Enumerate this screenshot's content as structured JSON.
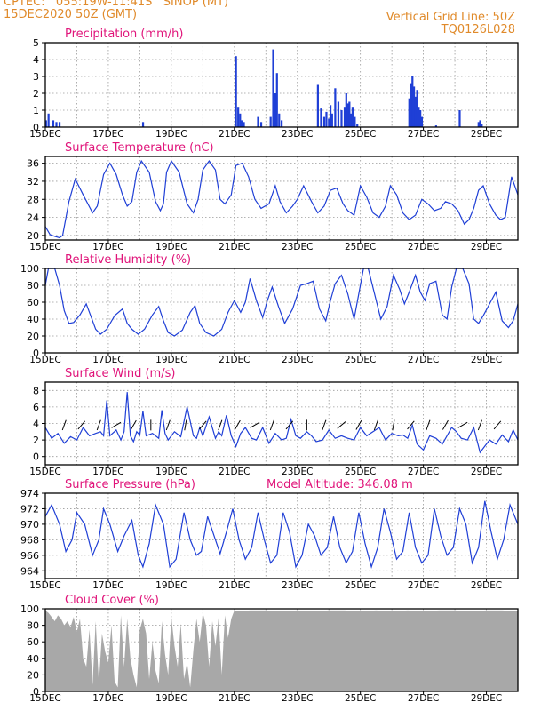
{
  "header": {
    "line1": "CPTEC:   055:19W-11:41S   SINOP (MT)",
    "line2": "15DEC2020 50Z (GMT)",
    "right1": "Vertical Grid Line: 50Z",
    "right2": "TQ0126L028"
  },
  "colors": {
    "header": "#e08a2a",
    "panel_title": "#e0147a",
    "line": "#1f3fd6",
    "bar": "#1f3fd6",
    "cloud": "#a8a8a8",
    "wind_arrow": "#000000"
  },
  "x_ticks": [
    "15DEC",
    "17DEC",
    "19DEC",
    "21DEC",
    "23DEC",
    "25DEC",
    "27DEC",
    "29DEC"
  ],
  "chart_data": [
    {
      "type": "bar",
      "title": "Precipitation (mm/h)",
      "x_range_days": [
        0,
        15
      ],
      "ylim": [
        0,
        5
      ],
      "yticks": [
        0,
        1,
        2,
        3,
        4,
        5
      ],
      "x": [
        0.02,
        0.1,
        0.25,
        0.35,
        0.45,
        3.1,
        6.05,
        6.12,
        6.18,
        6.23,
        6.3,
        6.75,
        6.85,
        7.15,
        7.23,
        7.3,
        7.35,
        7.42,
        7.5,
        8.65,
        8.75,
        8.85,
        8.92,
        9.0,
        9.05,
        9.1,
        9.2,
        9.3,
        9.4,
        9.5,
        9.55,
        9.6,
        9.65,
        9.7,
        9.75,
        9.82,
        9.9,
        11.55,
        11.6,
        11.65,
        11.7,
        11.75,
        11.8,
        11.85,
        11.9,
        11.95,
        12.4,
        13.15,
        13.75,
        13.8,
        13.85
      ],
      "values": [
        0.4,
        0.8,
        0.4,
        0.3,
        0.3,
        0.3,
        4.2,
        1.2,
        0.8,
        0.4,
        0.3,
        0.6,
        0.3,
        0.6,
        4.6,
        2.0,
        3.2,
        0.8,
        0.4,
        2.5,
        1.1,
        0.6,
        0.9,
        0.5,
        1.3,
        0.8,
        2.3,
        1.5,
        1.0,
        1.2,
        2.0,
        1.4,
        1.5,
        0.8,
        1.2,
        0.6,
        0.2,
        1.7,
        2.6,
        3.0,
        2.4,
        1.8,
        2.2,
        1.2,
        1.0,
        0.6,
        0.1,
        1.0,
        0.3,
        0.4,
        0.2
      ]
    },
    {
      "type": "line",
      "title": "Surface Temperature (nC)",
      "x_range_days": [
        0,
        15
      ],
      "ylim": [
        19,
        37.5
      ],
      "yticks": [
        20,
        24,
        28,
        32,
        36
      ],
      "x": [
        0,
        0.15,
        0.3,
        0.45,
        0.55,
        0.75,
        0.95,
        1.2,
        1.5,
        1.65,
        1.85,
        2.05,
        2.25,
        2.45,
        2.6,
        2.75,
        2.9,
        3.05,
        3.3,
        3.5,
        3.65,
        3.75,
        3.85,
        4.0,
        4.25,
        4.5,
        4.7,
        4.85,
        5.0,
        5.2,
        5.4,
        5.55,
        5.7,
        5.9,
        6.05,
        6.25,
        6.45,
        6.65,
        6.85,
        7.1,
        7.3,
        7.45,
        7.65,
        7.85,
        8.0,
        8.2,
        8.45,
        8.65,
        8.85,
        9.05,
        9.25,
        9.45,
        9.6,
        9.8,
        10.0,
        10.2,
        10.4,
        10.6,
        10.8,
        10.95,
        11.15,
        11.35,
        11.55,
        11.75,
        11.95,
        12.15,
        12.35,
        12.55,
        12.7,
        12.9,
        13.1,
        13.3,
        13.45,
        13.6,
        13.75,
        13.9,
        14.1,
        14.3,
        14.45,
        14.6,
        14.8,
        15.0
      ],
      "values": [
        22,
        20.2,
        19.8,
        19.5,
        20,
        27.5,
        32.5,
        29,
        25,
        26.5,
        33.5,
        36,
        33.5,
        29,
        26.5,
        27.5,
        34,
        36.5,
        34,
        27.5,
        25.5,
        27,
        34,
        36.5,
        34,
        27,
        25,
        28,
        34.5,
        36.5,
        34.5,
        28,
        27,
        29,
        35.5,
        36,
        33,
        28,
        26,
        27,
        31,
        27.5,
        25,
        26.5,
        28,
        31,
        27.5,
        25,
        26.5,
        30,
        30.5,
        27,
        25.5,
        24.5,
        31,
        28.5,
        25,
        24,
        26.5,
        31,
        29,
        25,
        23.5,
        24.5,
        28,
        27,
        25.5,
        26,
        27.5,
        27,
        25.5,
        22.5,
        23.5,
        26,
        30,
        31,
        27,
        24.5,
        23.5,
        24,
        33,
        29
      ]
    },
    {
      "type": "line",
      "title": "Relative Humidity (%)",
      "x_range_days": [
        0,
        15
      ],
      "ylim": [
        0,
        100
      ],
      "yticks": [
        0,
        20,
        40,
        60,
        80,
        100
      ],
      "x": [
        0,
        0.1,
        0.3,
        0.45,
        0.6,
        0.75,
        0.9,
        1.1,
        1.3,
        1.5,
        1.6,
        1.75,
        1.95,
        2.2,
        2.45,
        2.6,
        2.75,
        2.95,
        3.15,
        3.4,
        3.6,
        3.75,
        3.9,
        4.1,
        4.35,
        4.6,
        4.75,
        4.9,
        5.1,
        5.35,
        5.6,
        5.8,
        6.0,
        6.2,
        6.35,
        6.5,
        6.7,
        6.9,
        7.05,
        7.2,
        7.4,
        7.6,
        7.85,
        8.1,
        8.3,
        8.5,
        8.7,
        8.9,
        9.05,
        9.2,
        9.4,
        9.6,
        9.8,
        9.95,
        10.1,
        10.25,
        10.45,
        10.65,
        10.85,
        11.05,
        11.25,
        11.4,
        11.55,
        11.75,
        11.9,
        12.05,
        12.2,
        12.4,
        12.6,
        12.75,
        12.9,
        13.05,
        13.25,
        13.45,
        13.6,
        13.75,
        13.9,
        14.1,
        14.3,
        14.5,
        14.7,
        14.85,
        15.0
      ],
      "values": [
        80,
        100,
        100,
        80,
        50,
        35,
        36,
        45,
        58,
        38,
        28,
        22,
        28,
        44,
        52,
        35,
        28,
        22,
        28,
        45,
        55,
        38,
        24,
        20,
        27,
        48,
        56,
        35,
        24,
        20,
        28,
        48,
        62,
        48,
        60,
        88,
        62,
        42,
        62,
        78,
        55,
        35,
        52,
        80,
        82,
        85,
        52,
        38,
        62,
        82,
        92,
        70,
        40,
        70,
        100,
        100,
        70,
        40,
        55,
        92,
        75,
        58,
        72,
        92,
        72,
        62,
        82,
        85,
        45,
        40,
        78,
        100,
        100,
        82,
        40,
        35,
        44,
        58,
        72,
        38,
        30,
        38,
        58
      ]
    },
    {
      "type": "line",
      "title": "Surface Wind (m/s)",
      "x_range_days": [
        0,
        15
      ],
      "ylim": [
        -1,
        9
      ],
      "yticks": [
        0,
        2,
        4,
        6,
        8
      ],
      "x": [
        0,
        0.2,
        0.4,
        0.6,
        0.8,
        1.0,
        1.2,
        1.4,
        1.6,
        1.75,
        1.85,
        1.95,
        2.05,
        2.25,
        2.4,
        2.5,
        2.6,
        2.7,
        2.8,
        2.9,
        3.0,
        3.1,
        3.2,
        3.4,
        3.6,
        3.7,
        3.8,
        3.9,
        4.1,
        4.3,
        4.5,
        4.7,
        4.8,
        4.9,
        5.0,
        5.2,
        5.4,
        5.5,
        5.6,
        5.75,
        5.9,
        6.05,
        6.2,
        6.35,
        6.55,
        6.7,
        6.9,
        7.1,
        7.3,
        7.5,
        7.65,
        7.8,
        7.95,
        8.1,
        8.3,
        8.45,
        8.6,
        8.8,
        9.0,
        9.2,
        9.4,
        9.6,
        9.8,
        10.0,
        10.2,
        10.4,
        10.6,
        10.8,
        11.0,
        11.2,
        11.35,
        11.5,
        11.65,
        11.8,
        12.0,
        12.2,
        12.4,
        12.6,
        12.75,
        12.9,
        13.05,
        13.2,
        13.4,
        13.6,
        13.8,
        13.9,
        14.1,
        14.3,
        14.5,
        14.7,
        14.85,
        15.0
      ],
      "values": [
        3.5,
        2.2,
        2.8,
        1.6,
        2.4,
        2.0,
        3.5,
        2.5,
        2.8,
        3.0,
        2.5,
        6.8,
        2.5,
        3.2,
        2.0,
        3.0,
        7.8,
        2.5,
        1.8,
        3.0,
        2.6,
        5.5,
        2.5,
        2.8,
        2.2,
        5.6,
        2.8,
        2.0,
        3.0,
        2.4,
        6.0,
        2.5,
        2.2,
        3.5,
        2.5,
        4.8,
        2.2,
        3.0,
        2.5,
        5.0,
        2.5,
        1.2,
        2.8,
        3.5,
        2.2,
        2.0,
        3.5,
        1.6,
        2.8,
        2.0,
        2.2,
        4.5,
        2.5,
        2.2,
        3.0,
        2.5,
        1.8,
        2.0,
        3.2,
        2.2,
        2.5,
        2.2,
        2.0,
        3.5,
        2.5,
        3.0,
        3.5,
        2.0,
        2.8,
        2.5,
        2.6,
        2.2,
        3.8,
        1.5,
        0.8,
        2.5,
        2.2,
        1.5,
        2.5,
        3.5,
        3.0,
        2.2,
        2.0,
        3.5,
        0.5,
        1.0,
        2.0,
        1.5,
        2.6,
        1.8,
        3.2,
        2.0
      ]
    },
    {
      "type": "line",
      "title": "Surface Pressure (hPa)",
      "annotation": "Model Altitude: 346.08 m",
      "x_range_days": [
        0,
        15
      ],
      "ylim": [
        963,
        974
      ],
      "yticks": [
        964,
        966,
        968,
        970,
        972,
        974
      ],
      "x": [
        0,
        0.2,
        0.45,
        0.65,
        0.85,
        1.0,
        1.25,
        1.5,
        1.7,
        1.85,
        2.05,
        2.3,
        2.5,
        2.75,
        2.95,
        3.1,
        3.3,
        3.5,
        3.75,
        3.95,
        4.15,
        4.4,
        4.6,
        4.8,
        4.95,
        5.15,
        5.4,
        5.55,
        5.75,
        5.95,
        6.15,
        6.35,
        6.55,
        6.75,
        6.95,
        7.15,
        7.35,
        7.55,
        7.75,
        7.95,
        8.15,
        8.35,
        8.55,
        8.75,
        8.95,
        9.15,
        9.35,
        9.55,
        9.75,
        9.95,
        10.15,
        10.35,
        10.55,
        10.75,
        10.95,
        11.15,
        11.35,
        11.55,
        11.75,
        11.95,
        12.15,
        12.35,
        12.55,
        12.75,
        12.95,
        13.15,
        13.35,
        13.55,
        13.75,
        13.95,
        14.15,
        14.35,
        14.55,
        14.75,
        15.0
      ],
      "values": [
        971,
        972.5,
        970,
        966.5,
        968,
        971.5,
        970,
        966,
        968,
        972,
        970,
        966.5,
        968.5,
        970.5,
        966,
        964.5,
        967.5,
        972.5,
        970,
        964.5,
        965.5,
        971.5,
        968,
        966,
        966.5,
        971,
        968,
        966.2,
        969,
        972,
        968,
        965.5,
        967,
        971.5,
        968,
        965,
        966,
        971.5,
        969,
        964.5,
        966,
        970,
        968.5,
        966,
        967,
        971,
        967,
        965,
        966.5,
        971.5,
        967.5,
        964.5,
        967,
        972,
        969,
        965.5,
        966.5,
        971.5,
        967,
        965,
        966,
        972,
        968.5,
        966,
        967,
        972,
        970,
        965,
        967,
        973,
        969,
        965.5,
        968,
        972.5,
        970
      ]
    },
    {
      "type": "area",
      "title": "Cloud Cover (%)",
      "x_range_days": [
        0,
        15
      ],
      "ylim": [
        0,
        100
      ],
      "yticks": [
        0,
        20,
        40,
        60,
        80,
        100
      ],
      "x": [
        0,
        0.1,
        0.2,
        0.3,
        0.4,
        0.5,
        0.6,
        0.7,
        0.8,
        0.9,
        1.0,
        1.1,
        1.2,
        1.3,
        1.4,
        1.5,
        1.6,
        1.7,
        1.8,
        1.9,
        2.0,
        2.1,
        2.2,
        2.3,
        2.4,
        2.5,
        2.6,
        2.7,
        2.8,
        2.9,
        3.0,
        3.1,
        3.2,
        3.3,
        3.4,
        3.5,
        3.6,
        3.7,
        3.8,
        3.9,
        4.0,
        4.1,
        4.2,
        4.3,
        4.4,
        4.5,
        4.6,
        4.7,
        4.8,
        4.9,
        5.0,
        5.1,
        5.2,
        5.3,
        5.4,
        5.5,
        5.6,
        5.7,
        5.8,
        5.9,
        6.0,
        6.2,
        6.5,
        7.0,
        7.5,
        8.0,
        8.5,
        9.0,
        9.5,
        10.0,
        10.5,
        11.0,
        11.5,
        12.0,
        12.5,
        13.0,
        13.5,
        14.0,
        14.5,
        15.0
      ],
      "values": [
        98,
        95,
        90,
        85,
        92,
        88,
        80,
        85,
        78,
        90,
        72,
        88,
        40,
        30,
        75,
        8,
        85,
        10,
        70,
        48,
        35,
        80,
        12,
        5,
        92,
        30,
        88,
        40,
        20,
        5,
        75,
        88,
        70,
        15,
        60,
        25,
        10,
        85,
        45,
        20,
        90,
        55,
        30,
        82,
        15,
        35,
        5,
        50,
        88,
        60,
        95,
        80,
        30,
        85,
        55,
        90,
        20,
        92,
        65,
        88,
        98,
        97,
        98,
        98,
        97,
        98,
        97,
        98,
        98,
        97,
        98,
        97,
        98,
        97,
        98,
        98,
        97,
        98,
        98,
        97
      ]
    }
  ]
}
